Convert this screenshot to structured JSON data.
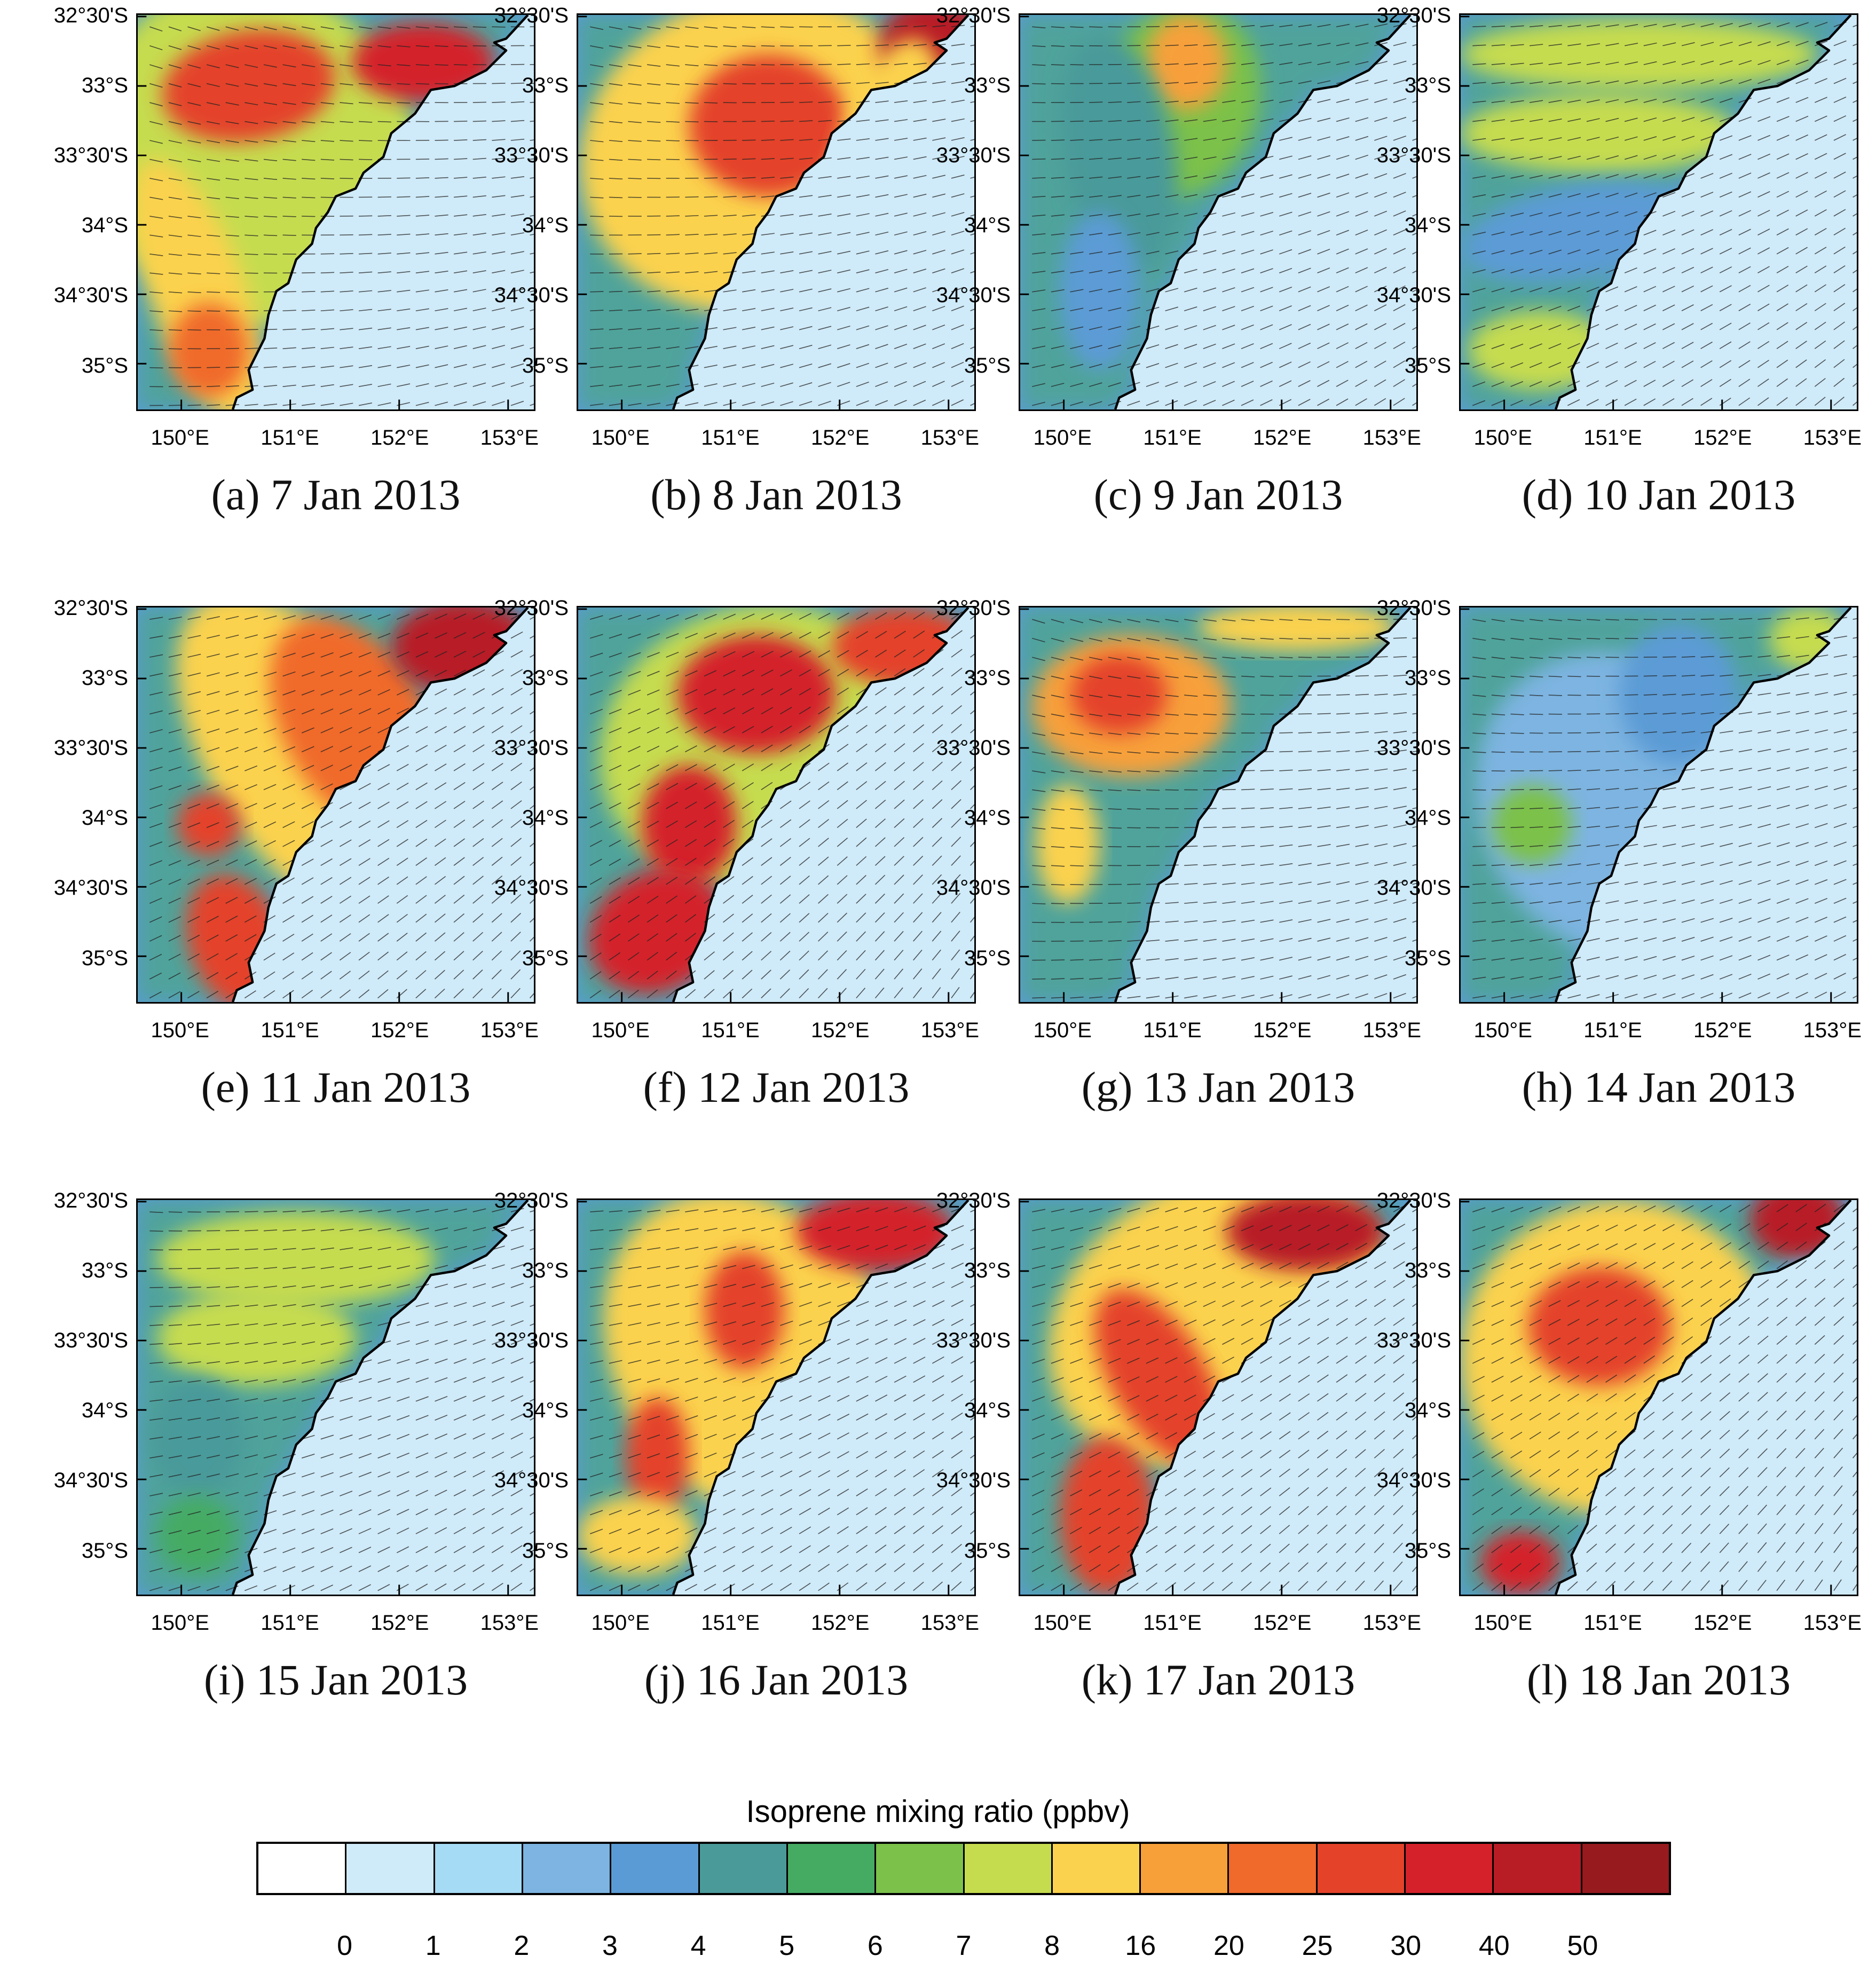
{
  "axis": {
    "lat_labels": [
      "32°30'S",
      "33°S",
      "33°30'S",
      "34°S",
      "34°30'S",
      "35°S"
    ],
    "lon_labels": [
      "150°E",
      "151°E",
      "152°E",
      "153°E"
    ]
  },
  "panels": [
    {
      "caption": "(a) 7 Jan 2013"
    },
    {
      "caption": "(b) 8 Jan 2013"
    },
    {
      "caption": "(c) 9 Jan 2013"
    },
    {
      "caption": "(d) 10 Jan 2013"
    },
    {
      "caption": "(e) 11 Jan 2013"
    },
    {
      "caption": "(f) 12 Jan 2013"
    },
    {
      "caption": "(g) 13 Jan 2013"
    },
    {
      "caption": "(h) 14 Jan 2013"
    },
    {
      "caption": "(i) 15 Jan 2013"
    },
    {
      "caption": "(j) 16 Jan 2013"
    },
    {
      "caption": "(k) 17 Jan 2013"
    },
    {
      "caption": "(l) 18 Jan 2013"
    }
  ],
  "colorbar": {
    "title": "Isoprene mixing ratio  (ppbv)",
    "colors": [
      "#ffffff",
      "#cfeaf8",
      "#a6dbf5",
      "#7db4e1",
      "#5b9bd5",
      "#4a9a9a",
      "#45ab63",
      "#7cc14a",
      "#c6dc4f",
      "#fbd24e",
      "#f7a03a",
      "#f06a2b",
      "#e4432a",
      "#d4212a",
      "#b81c25",
      "#961a1e"
    ],
    "ticks": [
      "0",
      "1",
      "2",
      "3",
      "4",
      "5",
      "6",
      "7",
      "8",
      "16",
      "20",
      "25",
      "30",
      "40",
      "50"
    ]
  }
}
